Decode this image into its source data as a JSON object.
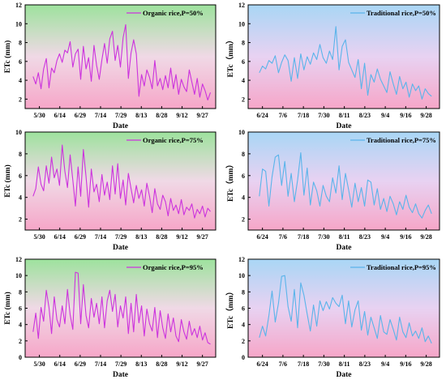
{
  "chart_data": [
    {
      "type": "line",
      "title": "",
      "xlabel": "Date",
      "ylabel": "ETc (mm)",
      "legend": "Organic rice,P=50%",
      "legend_position": "top-right",
      "line_color": "#cc33dd",
      "background_gradient": [
        "#9de29d",
        "#f0d9e6",
        "#f6a6c8"
      ],
      "grid": false,
      "xlim": [
        135,
        279
      ],
      "ylim": [
        1,
        12
      ],
      "x_tick_labels": [
        "5/30",
        "6/14",
        "6/29",
        "7/14",
        "7/29",
        "8/13",
        "8/28",
        "9/12",
        "9/27"
      ],
      "y_ticks": [
        2,
        4,
        6,
        8,
        10,
        12
      ],
      "series": [
        {
          "name": "Organic rice,P=50%",
          "x": [
            141,
            143,
            145,
            147,
            149,
            151,
            153,
            155,
            157,
            159,
            161,
            163,
            165,
            167,
            169,
            171,
            173,
            175,
            177,
            179,
            181,
            183,
            185,
            187,
            189,
            191,
            193,
            195,
            197,
            199,
            201,
            203,
            205,
            207,
            209,
            211,
            213,
            215,
            217,
            219,
            221,
            223,
            225,
            227,
            229,
            231,
            233,
            235,
            237,
            239,
            241,
            243,
            245,
            247,
            249,
            251,
            253,
            255,
            257,
            259,
            261,
            263,
            265,
            267,
            269,
            271,
            273,
            275
          ],
          "y": [
            4.4,
            3.6,
            4.8,
            3.1,
            5.2,
            6.3,
            3.2,
            5.3,
            4.8,
            6.1,
            6.8,
            5.9,
            7.2,
            6.9,
            8.1,
            5.4,
            6.8,
            7.3,
            4.1,
            7.6,
            5.2,
            6.4,
            3.9,
            7.7,
            5.6,
            4.1,
            6.2,
            7.9,
            5.8,
            8.4,
            9.2,
            6.1,
            7.7,
            5.4,
            8.5,
            9.9,
            4.2,
            6.9,
            8.3,
            6.8,
            2.3,
            4.6,
            3.4,
            5.1,
            4.3,
            3.1,
            6.1,
            3.4,
            4.2,
            3.0,
            4.5,
            3.2,
            5.3,
            3.1,
            4.6,
            2.5,
            4.1,
            3.3,
            2.8,
            5.1,
            3.8,
            2.5,
            4.2,
            2.2,
            3.6,
            2.9,
            1.9,
            2.7
          ]
        }
      ]
    },
    {
      "type": "line",
      "title": "",
      "xlabel": "Date",
      "ylabel": "ETc（mm）",
      "legend": "Traditional rice,P=50%",
      "legend_position": "top-right",
      "line_color": "#5ab4ea",
      "background_gradient": [
        "#a9d6f5",
        "#e8d2f2",
        "#f6a6c8"
      ],
      "grid": false,
      "xlim": [
        168,
        288
      ],
      "ylim": [
        1,
        12
      ],
      "x_tick_labels": [
        "6/24",
        "7/6",
        "7/18",
        "7/30",
        "8/11",
        "8/23",
        "9/4",
        "9/16",
        "9/28"
      ],
      "y_ticks": [
        2,
        4,
        6,
        8,
        10,
        12
      ],
      "series": [
        {
          "name": "Traditional rice,P=50%",
          "x": [
            175,
            177,
            179,
            181,
            183,
            185,
            187,
            189,
            191,
            193,
            195,
            197,
            199,
            201,
            203,
            205,
            207,
            209,
            211,
            213,
            215,
            217,
            219,
            221,
            223,
            225,
            227,
            229,
            231,
            233,
            235,
            237,
            239,
            241,
            243,
            245,
            247,
            249,
            251,
            253,
            255,
            257,
            259,
            261,
            263,
            265,
            267,
            269,
            271,
            273,
            275,
            277,
            279,
            281,
            283
          ],
          "y": [
            4.8,
            5.5,
            5.2,
            6.1,
            5.8,
            6.6,
            4.8,
            5.9,
            6.7,
            6.1,
            3.9,
            6.4,
            4.2,
            6.8,
            5.1,
            6.5,
            5.7,
            6.9,
            6.2,
            7.8,
            6.4,
            5.8,
            7.1,
            6.2,
            9.7,
            5.1,
            7.6,
            8.3,
            5.9,
            5.1,
            4.3,
            6.2,
            3.1,
            5.8,
            2.4,
            4.6,
            3.8,
            5.2,
            4.1,
            3.4,
            2.7,
            4.9,
            3.6,
            2.5,
            4.4,
            3.1,
            3.8,
            2.2,
            3.6,
            2.9,
            3.4,
            2.0,
            3.1,
            2.6,
            2.3
          ]
        }
      ]
    },
    {
      "type": "line",
      "title": "",
      "xlabel": "Date",
      "ylabel": "ETc (mm)",
      "legend": "Organic rice,P=75%",
      "legend_position": "top-right",
      "line_color": "#cc33dd",
      "background_gradient": [
        "#9de29d",
        "#f0d9e6",
        "#f6a6c8"
      ],
      "grid": false,
      "xlim": [
        135,
        279
      ],
      "ylim": [
        1,
        10
      ],
      "x_tick_labels": [
        "5/30",
        "6/14",
        "6/29",
        "7/14",
        "7/29",
        "8/13",
        "8/28",
        "9/12",
        "9/27"
      ],
      "y_ticks": [
        2,
        4,
        6,
        8,
        10
      ],
      "series": [
        {
          "name": "Organic rice,P=75%",
          "x": [
            141,
            143,
            145,
            147,
            149,
            151,
            153,
            155,
            157,
            159,
            161,
            163,
            165,
            167,
            169,
            171,
            173,
            175,
            177,
            179,
            181,
            183,
            185,
            187,
            189,
            191,
            193,
            195,
            197,
            199,
            201,
            203,
            205,
            207,
            209,
            211,
            213,
            215,
            217,
            219,
            221,
            223,
            225,
            227,
            229,
            231,
            233,
            235,
            237,
            239,
            241,
            243,
            245,
            247,
            249,
            251,
            253,
            255,
            257,
            259,
            261,
            263,
            265,
            267,
            269,
            271,
            273,
            275
          ],
          "y": [
            4.1,
            4.8,
            6.8,
            5.2,
            4.6,
            6.9,
            5.3,
            7.7,
            5.8,
            6.6,
            5.1,
            8.8,
            6.4,
            4.9,
            7.9,
            5.6,
            3.2,
            6.8,
            4.1,
            8.4,
            5.9,
            3.1,
            6.6,
            4.5,
            5.2,
            3.6,
            6.1,
            4.2,
            5.4,
            3.8,
            6.9,
            4.3,
            7.1,
            3.9,
            5.6,
            3.3,
            6.2,
            4.8,
            3.5,
            5.1,
            3.9,
            4.7,
            3.2,
            5.3,
            4.1,
            2.6,
            4.8,
            3.4,
            2.9,
            4.2,
            3.6,
            2.3,
            3.9,
            2.8,
            3.3,
            2.5,
            3.8,
            2.4,
            3.1,
            2.8,
            3.4,
            2.1,
            2.9,
            2.5,
            3.2,
            2.2,
            3.0,
            2.7
          ]
        }
      ]
    },
    {
      "type": "line",
      "title": "",
      "xlabel": "Date",
      "ylabel": "ETc（mm）",
      "legend": "Traditional rice,P=75%",
      "legend_position": "top-right",
      "line_color": "#5ab4ea",
      "background_gradient": [
        "#a9d6f5",
        "#e8d2f2",
        "#f6a6c8"
      ],
      "grid": false,
      "xlim": [
        168,
        288
      ],
      "ylim": [
        1,
        10
      ],
      "x_tick_labels": [
        "6/24",
        "7/6",
        "7/18",
        "7/30",
        "8/11",
        "8/23",
        "9/4",
        "9/16",
        "9/28"
      ],
      "y_ticks": [
        2,
        4,
        6,
        8,
        10
      ],
      "series": [
        {
          "name": "Traditional rice,P=75%",
          "x": [
            175,
            177,
            179,
            181,
            183,
            185,
            187,
            189,
            191,
            193,
            195,
            197,
            199,
            201,
            203,
            205,
            207,
            209,
            211,
            213,
            215,
            217,
            219,
            221,
            223,
            225,
            227,
            229,
            231,
            233,
            235,
            237,
            239,
            241,
            243,
            245,
            247,
            249,
            251,
            253,
            255,
            257,
            259,
            261,
            263,
            265,
            267,
            269,
            271,
            273,
            275,
            277,
            279,
            281,
            283
          ],
          "y": [
            4.1,
            6.6,
            6.4,
            3.2,
            5.9,
            7.7,
            7.9,
            5.1,
            7.3,
            4.1,
            6.2,
            3.6,
            5.6,
            8.1,
            4.2,
            6.7,
            3.3,
            5.4,
            4.6,
            3.2,
            5.1,
            4.1,
            3.6,
            5.8,
            4.4,
            6.9,
            3.8,
            6.2,
            4.7,
            3.1,
            5.3,
            3.6,
            4.9,
            3.2,
            5.6,
            5.4,
            3.3,
            4.8,
            2.9,
            3.9,
            2.7,
            4.1,
            3.4,
            2.4,
            3.6,
            2.9,
            4.2,
            3.1,
            2.6,
            3.4,
            2.5,
            2.1,
            2.8,
            3.3,
            2.5
          ]
        }
      ]
    },
    {
      "type": "line",
      "title": "",
      "xlabel": "Date",
      "ylabel": "ETc (mm)",
      "legend": "Organic rice,P=95%",
      "legend_position": "top-right",
      "line_color": "#cc33dd",
      "background_gradient": [
        "#9de29d",
        "#f0d9e6",
        "#f6a6c8"
      ],
      "grid": false,
      "xlim": [
        135,
        279
      ],
      "ylim": [
        0,
        12
      ],
      "x_tick_labels": [
        "5/30",
        "6/14",
        "6/29",
        "7/14",
        "7/29",
        "8/13",
        "8/28",
        "9/12",
        "9/27"
      ],
      "y_ticks": [
        0,
        2,
        4,
        6,
        8,
        10,
        12
      ],
      "series": [
        {
          "name": "Organic rice,P=95%",
          "x": [
            141,
            143,
            145,
            147,
            149,
            151,
            153,
            155,
            157,
            159,
            161,
            163,
            165,
            167,
            169,
            171,
            173,
            175,
            177,
            179,
            181,
            183,
            185,
            187,
            189,
            191,
            193,
            195,
            197,
            199,
            201,
            203,
            205,
            207,
            209,
            211,
            213,
            215,
            217,
            219,
            221,
            223,
            225,
            227,
            229,
            231,
            233,
            235,
            237,
            239,
            241,
            243,
            245,
            247,
            249,
            251,
            253,
            255,
            257,
            259,
            261,
            263,
            265,
            267,
            269,
            271,
            273,
            275
          ],
          "y": [
            3.1,
            5.4,
            2.3,
            6.1,
            4.4,
            8.2,
            6.1,
            2.9,
            7.4,
            4.6,
            3.7,
            6.3,
            4.1,
            8.3,
            5.2,
            3.4,
            10.4,
            10.3,
            4.1,
            8.9,
            5.1,
            3.6,
            7.2,
            4.9,
            6.6,
            4.1,
            7.4,
            3.6,
            6.9,
            8.2,
            5.6,
            7.7,
            3.7,
            6.3,
            4.8,
            7.4,
            2.9,
            6.6,
            3.1,
            7.7,
            4.2,
            6.3,
            2.6,
            5.9,
            4.1,
            3.2,
            6.1,
            2.4,
            5.7,
            3.6,
            2.3,
            5.3,
            3.1,
            4.8,
            2.6,
            1.9,
            4.6,
            3.1,
            2.2,
            4.4,
            2.7,
            3.5,
            2.4,
            3.8,
            2.1,
            3.0,
            1.8,
            1.6
          ]
        }
      ]
    },
    {
      "type": "line",
      "title": "",
      "xlabel": "Date",
      "ylabel": "ETc（mm）",
      "legend": "Traditional rice,P=95%",
      "legend_position": "top-right",
      "line_color": "#5ab4ea",
      "background_gradient": [
        "#a9d6f5",
        "#e8d2f2",
        "#f6a6c8"
      ],
      "grid": false,
      "xlim": [
        168,
        288
      ],
      "ylim": [
        0,
        12
      ],
      "x_tick_labels": [
        "6/24",
        "7/6",
        "7/18",
        "7/30",
        "8/11",
        "8/23",
        "9/4",
        "9/16",
        "9/28"
      ],
      "y_ticks": [
        0,
        2,
        4,
        6,
        8,
        10,
        12
      ],
      "series": [
        {
          "name": "Traditional rice,P=95%",
          "x": [
            175,
            177,
            179,
            181,
            183,
            185,
            187,
            189,
            191,
            193,
            195,
            197,
            199,
            201,
            203,
            205,
            207,
            209,
            211,
            213,
            215,
            217,
            219,
            221,
            223,
            225,
            227,
            229,
            231,
            233,
            235,
            237,
            239,
            241,
            243,
            245,
            247,
            249,
            251,
            253,
            255,
            257,
            259,
            261,
            263,
            265,
            267,
            269,
            271,
            273,
            275,
            277,
            279,
            281,
            283
          ],
          "y": [
            2.4,
            3.8,
            2.6,
            5.1,
            8.1,
            4.3,
            6.6,
            9.9,
            10.0,
            6.2,
            4.4,
            8.3,
            3.6,
            9.1,
            7.6,
            5.3,
            3.2,
            6.4,
            3.8,
            6.9,
            5.7,
            6.8,
            5.9,
            7.3,
            6.6,
            6.2,
            7.6,
            4.1,
            6.9,
            3.7,
            5.8,
            6.9,
            3.3,
            5.6,
            2.7,
            4.9,
            3.6,
            2.3,
            5.1,
            3.1,
            2.8,
            4.6,
            3.4,
            2.1,
            4.9,
            3.1,
            2.4,
            4.2,
            2.6,
            3.2,
            2.3,
            3.6,
            1.9,
            2.6,
            1.7
          ]
        }
      ]
    }
  ]
}
